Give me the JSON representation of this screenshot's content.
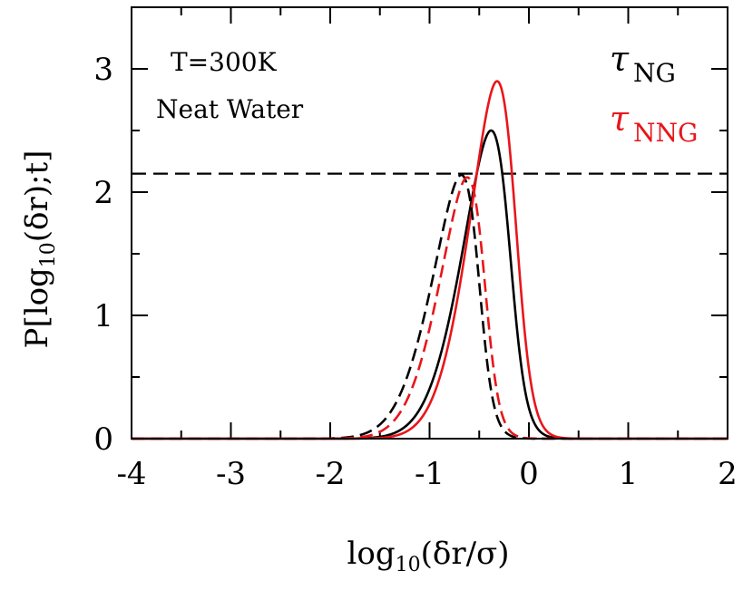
{
  "chart_data": {
    "type": "line",
    "annotations": [
      "T=300K",
      "Neat Water"
    ],
    "xlim": [
      -4,
      2
    ],
    "ylim": [
      0,
      3.5
    ],
    "xticks": [
      -4,
      -3,
      -2,
      -1,
      0,
      1,
      2
    ],
    "yticks": [
      0,
      1,
      2,
      3
    ],
    "xtick_labels": [
      "-4",
      "-3",
      "-2",
      "-1",
      "0",
      "1",
      "2"
    ],
    "ytick_labels": [
      "0",
      "1",
      "2",
      "3"
    ],
    "legend": {
      "placement": "top-right",
      "entries": [
        {
          "symbol": "τ",
          "subscript": "NG",
          "color": "#000000"
        },
        {
          "symbol": "τ",
          "subscript": "NNG",
          "color": "#e8161b"
        }
      ]
    },
    "reference_line": {
      "y": 2.15,
      "style": "dashed",
      "color": "#000000"
    },
    "series": [
      {
        "color": "#000000",
        "style": "solid",
        "peak_x": -0.38,
        "peak_y": 2.5,
        "sigma": 0.4,
        "skew": -2.8
      },
      {
        "color": "#e8161b",
        "style": "solid",
        "peak_x": -0.32,
        "peak_y": 2.9,
        "sigma": 0.38,
        "skew": -2.6
      },
      {
        "color": "#000000",
        "style": "dashed",
        "peak_x": -0.68,
        "peak_y": 2.14,
        "sigma": 0.4,
        "skew": -3.2
      },
      {
        "color": "#e8161b",
        "style": "dashed",
        "peak_x": -0.62,
        "peak_y": 2.12,
        "sigma": 0.38,
        "skew": -3.0
      }
    ]
  }
}
